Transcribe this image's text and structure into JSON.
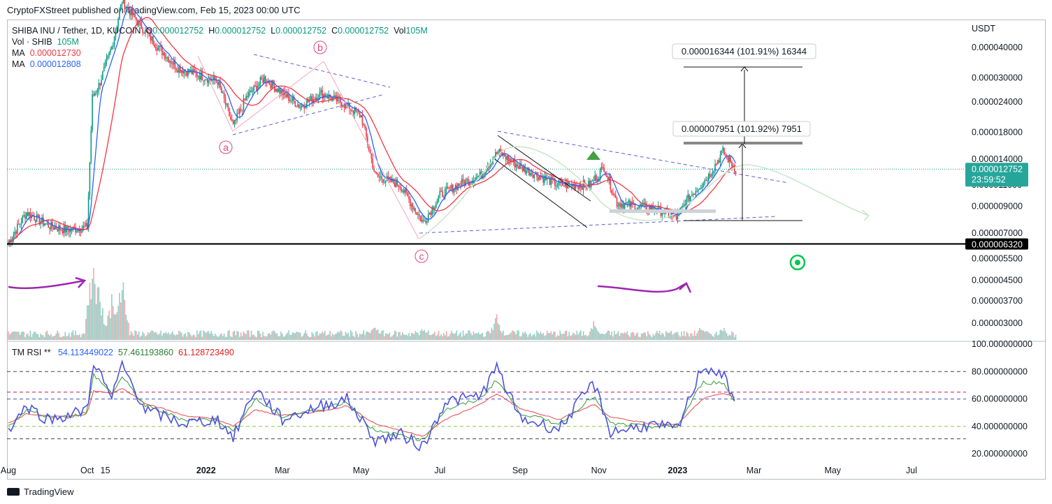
{
  "publisher_line": "CryptoFXStreet published on TradingView.com, Feb 15, 2023 00:00 UTC",
  "footer_brand": "TradingView",
  "legend": {
    "symbol": "SHIBA INU / Tether, 1D, KUCOIN",
    "o_label": "O",
    "o_value": "0.000012752",
    "h_label": "H",
    "h_value": "0.000012752",
    "l_label": "L",
    "l_value": "0.000012752",
    "c_label": "C",
    "c_value": "0.000012752",
    "vol_label": "Vol",
    "vol_value": "105M",
    "vol_shib_label": "Vol · SHIB",
    "vol_shib_value": "105M",
    "ma1_label": "MA",
    "ma1_value": "0.000012730",
    "ma2_label": "MA",
    "ma2_value": "0.000012808"
  },
  "rsi_legend": {
    "label": "TM RSI **",
    "v1": "54.113449022",
    "v2": "57.461193860",
    "v3": "61.128723490"
  },
  "colors": {
    "candle_up": "#089981",
    "candle_down": "#f23645",
    "ma_fast": "#2962ff",
    "ma_slow": "#f23645",
    "rsi_line": "#4c52e0",
    "pattern": "#5c5cd6",
    "wave": "#e0457b",
    "annotation": "#9c27b0"
  },
  "chart_data": [
    {
      "type": "line",
      "title": "SHIBA INU / Tether, 1D, KUCOIN",
      "ylabel": "USDT",
      "yscale": "log",
      "ylim": [
        2.6e-06,
        4.8e-05
      ],
      "y_ticks": [
        "0.000040000",
        "0.000030000",
        "0.000024000",
        "0.000018000",
        "0.000014000",
        "0.000011000",
        "0.000009000",
        "0.000007000",
        "0.000005500",
        "0.000004500",
        "0.000003700",
        "0.000003000"
      ],
      "x_ticks": [
        "Aug",
        "Oct",
        "15",
        "2022",
        "Mar",
        "May",
        "Jul",
        "Sep",
        "Nov",
        "2023",
        "Mar",
        "May",
        "Jul"
      ],
      "last_price_label": "0.000012752",
      "countdown_label": "23:59:52",
      "support_label": "0.000006320",
      "support_level": 6.32e-06,
      "measure_1": "0.000007951 (101.92%) 7951",
      "measure_2": "0.000016344 (101.91%) 16344",
      "wave_labels": [
        "a",
        "b",
        "c"
      ],
      "series": [
        {
          "name": "SHIB close",
          "x": [
            "2021-08-01",
            "2021-08-15",
            "2021-09-01",
            "2021-09-15",
            "2021-10-01",
            "2021-10-05",
            "2021-10-10",
            "2021-10-20",
            "2021-10-28",
            "2021-11-10",
            "2021-11-25",
            "2021-12-10",
            "2021-12-25",
            "2022-01-10",
            "2022-01-22",
            "2022-02-01",
            "2022-02-15",
            "2022-03-01",
            "2022-03-15",
            "2022-03-31",
            "2022-04-15",
            "2022-05-01",
            "2022-05-12",
            "2022-05-31",
            "2022-06-18",
            "2022-07-01",
            "2022-07-15",
            "2022-08-01",
            "2022-08-15",
            "2022-09-01",
            "2022-09-15",
            "2022-10-01",
            "2022-10-25",
            "2022-11-05",
            "2022-11-15",
            "2022-12-01",
            "2022-12-15",
            "2022-12-31",
            "2023-01-10",
            "2023-01-25",
            "2023-02-05",
            "2023-02-15"
          ],
          "values": [
            6.4e-06,
            8.5e-06,
            7.5e-06,
            7.2e-06,
            7.4e-06,
            2.5e-05,
            2.8e-05,
            4e-05,
            6.2e-05,
            5e-05,
            4e-05,
            3.3e-05,
            3.1e-05,
            2.9e-05,
            1.9e-05,
            2.5e-05,
            3e-05,
            2.6e-05,
            2.3e-05,
            2.6e-05,
            2.4e-05,
            2.1e-05,
            1.2e-05,
            1.1e-05,
            7.7e-06,
            1e-05,
            1.1e-05,
            1.2e-05,
            1.5e-05,
            1.3e-05,
            1.2e-05,
            1.1e-05,
            1.1e-05,
            1.3e-05,
            9.3e-06,
            9e-06,
            8.8e-06,
            8.1e-06,
            9.8e-06,
            1.2e-05,
            1.5e-05,
            1.2752e-05
          ]
        }
      ]
    },
    {
      "type": "bar",
      "title": "Volume",
      "ylabel": "Vol · SHIB"
    },
    {
      "type": "line",
      "title": "TM RSI **",
      "ylim": [
        15,
        100
      ],
      "y_ticks": [
        "100.000000000",
        "80.000000000",
        "60.000000000",
        "40.000000000",
        "20.000000000"
      ],
      "levels": [
        80,
        65,
        60,
        40,
        31
      ],
      "series": [
        {
          "name": "RSI",
          "x": [
            "2021-08-01",
            "2021-08-15",
            "2021-09-01",
            "2021-09-15",
            "2021-10-01",
            "2021-10-06",
            "2021-10-20",
            "2021-10-28",
            "2021-11-15",
            "2021-12-15",
            "2022-01-10",
            "2022-01-22",
            "2022-02-08",
            "2022-03-01",
            "2022-03-31",
            "2022-04-20",
            "2022-05-12",
            "2022-06-01",
            "2022-06-18",
            "2022-07-05",
            "2022-08-01",
            "2022-08-14",
            "2022-09-01",
            "2022-10-01",
            "2022-10-28",
            "2022-11-10",
            "2022-12-10",
            "2023-01-01",
            "2023-01-20",
            "2023-02-05",
            "2023-02-15"
          ],
          "values": [
            38,
            55,
            45,
            48,
            52,
            88,
            60,
            85,
            52,
            42,
            45,
            32,
            68,
            45,
            55,
            60,
            30,
            34,
            25,
            58,
            62,
            83,
            46,
            38,
            72,
            36,
            41,
            38,
            84,
            78,
            54
          ]
        },
        {
          "name": "Signal",
          "values": [
            40,
            52,
            47,
            47,
            50,
            78,
            64,
            76,
            55,
            45,
            45,
            36,
            60,
            47,
            53,
            58,
            36,
            34,
            30,
            52,
            60,
            74,
            50,
            42,
            62,
            42,
            40,
            40,
            72,
            72,
            57
          ]
        },
        {
          "name": "Slow",
          "values": [
            42,
            49,
            48,
            47,
            49,
            66,
            64,
            68,
            57,
            48,
            45,
            40,
            52,
            48,
            51,
            55,
            42,
            37,
            33,
            45,
            56,
            64,
            53,
            45,
            56,
            47,
            42,
            41,
            60,
            64,
            61
          ]
        }
      ]
    }
  ]
}
